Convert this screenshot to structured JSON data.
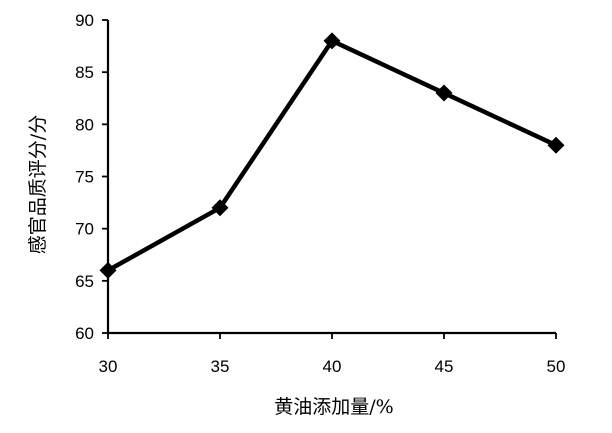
{
  "chart_data": {
    "type": "line",
    "xlabel": "黄油添加量/%",
    "ylabel": "感官品质评分/分",
    "xlim": [
      30,
      50
    ],
    "ylim": [
      60,
      90
    ],
    "xticks": [
      30,
      35,
      40,
      45,
      50
    ],
    "yticks": [
      60,
      65,
      70,
      75,
      80,
      85,
      90
    ],
    "grid": false,
    "legend": "none",
    "marker": "diamond",
    "line_color": "#000000",
    "series": [
      {
        "x": [
          30,
          35,
          40,
          45,
          50
        ],
        "y": [
          66,
          72,
          88,
          83,
          78
        ]
      }
    ]
  }
}
